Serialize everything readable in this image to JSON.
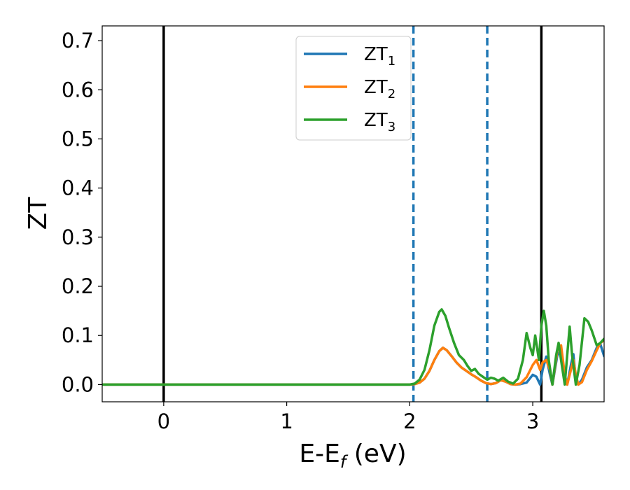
{
  "chart_data": {
    "type": "line",
    "xlabel": "E-E",
    "xlabel_sub": "f",
    "xlabel_unit": " (eV)",
    "ylabel": "ZT",
    "xlim": [
      -0.5,
      3.58
    ],
    "ylim": [
      -0.035,
      0.73
    ],
    "xticks": [
      0,
      1,
      2,
      3
    ],
    "xtick_labels": [
      "0",
      "1",
      "2",
      "3"
    ],
    "yticks": [
      0.0,
      0.1,
      0.2,
      0.3,
      0.4,
      0.5,
      0.6,
      0.7
    ],
    "ytick_labels": [
      "0.0",
      "0.1",
      "0.2",
      "0.3",
      "0.4",
      "0.5",
      "0.6",
      "0.7"
    ],
    "grid": false,
    "legend_position": "top-center",
    "vlines": [
      {
        "x": 0.0,
        "color": "#000000",
        "style": "solid"
      },
      {
        "x": 3.07,
        "color": "#000000",
        "style": "solid"
      },
      {
        "x": 2.03,
        "color": "#1f77b4",
        "style": "dashed"
      },
      {
        "x": 2.63,
        "color": "#1f77b4",
        "style": "dashed"
      }
    ],
    "series": [
      {
        "name": "ZT",
        "name_sub": "1",
        "color": "#1f77b4",
        "points": [
          [
            -0.5,
            0
          ],
          [
            2.0,
            0
          ],
          [
            2.04,
            0.001
          ],
          [
            2.08,
            0.004
          ],
          [
            2.12,
            0.012
          ],
          [
            2.16,
            0.028
          ],
          [
            2.2,
            0.05
          ],
          [
            2.24,
            0.068
          ],
          [
            2.27,
            0.075
          ],
          [
            2.3,
            0.07
          ],
          [
            2.34,
            0.058
          ],
          [
            2.38,
            0.045
          ],
          [
            2.42,
            0.035
          ],
          [
            2.46,
            0.028
          ],
          [
            2.5,
            0.021
          ],
          [
            2.54,
            0.015
          ],
          [
            2.58,
            0.008
          ],
          [
            2.62,
            0.003
          ],
          [
            2.66,
            0.001
          ],
          [
            2.7,
            0.003
          ],
          [
            2.74,
            0.009
          ],
          [
            2.78,
            0.006
          ],
          [
            2.82,
            0.001
          ],
          [
            2.86,
            0.0
          ],
          [
            2.9,
            0.001
          ],
          [
            2.95,
            0.004
          ],
          [
            3.0,
            0.02
          ],
          [
            3.03,
            0.016
          ],
          [
            3.06,
            0.0
          ],
          [
            3.08,
            0.03
          ],
          [
            3.11,
            0.057
          ],
          [
            3.14,
            0.02
          ],
          [
            3.16,
            0.0
          ],
          [
            3.2,
            0.06
          ],
          [
            3.23,
            0.07
          ],
          [
            3.26,
            0.01
          ],
          [
            3.28,
            0.0
          ],
          [
            3.31,
            0.04
          ],
          [
            3.33,
            0.062
          ],
          [
            3.35,
            0.01
          ],
          [
            3.37,
            0.0
          ],
          [
            3.4,
            0.01
          ],
          [
            3.44,
            0.035
          ],
          [
            3.48,
            0.05
          ],
          [
            3.52,
            0.075
          ],
          [
            3.55,
            0.082
          ],
          [
            3.58,
            0.058
          ]
        ]
      },
      {
        "name": "ZT",
        "name_sub": "2",
        "color": "#ff7f0e",
        "points": [
          [
            -0.5,
            0
          ],
          [
            2.0,
            0
          ],
          [
            2.04,
            0.001
          ],
          [
            2.08,
            0.004
          ],
          [
            2.12,
            0.012
          ],
          [
            2.16,
            0.028
          ],
          [
            2.2,
            0.05
          ],
          [
            2.24,
            0.068
          ],
          [
            2.27,
            0.075
          ],
          [
            2.3,
            0.07
          ],
          [
            2.34,
            0.058
          ],
          [
            2.38,
            0.045
          ],
          [
            2.42,
            0.035
          ],
          [
            2.46,
            0.028
          ],
          [
            2.5,
            0.021
          ],
          [
            2.54,
            0.015
          ],
          [
            2.58,
            0.008
          ],
          [
            2.62,
            0.003
          ],
          [
            2.66,
            0.001
          ],
          [
            2.7,
            0.003
          ],
          [
            2.74,
            0.009
          ],
          [
            2.78,
            0.006
          ],
          [
            2.82,
            0.001
          ],
          [
            2.86,
            0.0
          ],
          [
            2.9,
            0.002
          ],
          [
            2.95,
            0.015
          ],
          [
            3.0,
            0.04
          ],
          [
            3.03,
            0.05
          ],
          [
            3.06,
            0.03
          ],
          [
            3.08,
            0.045
          ],
          [
            3.11,
            0.05
          ],
          [
            3.14,
            0.03
          ],
          [
            3.16,
            0.0
          ],
          [
            3.2,
            0.07
          ],
          [
            3.23,
            0.08
          ],
          [
            3.26,
            0.02
          ],
          [
            3.28,
            0.0
          ],
          [
            3.31,
            0.03
          ],
          [
            3.33,
            0.05
          ],
          [
            3.35,
            0.02
          ],
          [
            3.37,
            0.0
          ],
          [
            3.4,
            0.005
          ],
          [
            3.44,
            0.03
          ],
          [
            3.48,
            0.048
          ],
          [
            3.52,
            0.07
          ],
          [
            3.55,
            0.085
          ],
          [
            3.58,
            0.09
          ]
        ]
      },
      {
        "name": "ZT",
        "name_sub": "3",
        "color": "#2ca02c",
        "points": [
          [
            -0.5,
            0
          ],
          [
            2.0,
            0
          ],
          [
            2.04,
            0.002
          ],
          [
            2.08,
            0.01
          ],
          [
            2.12,
            0.03
          ],
          [
            2.16,
            0.07
          ],
          [
            2.2,
            0.12
          ],
          [
            2.24,
            0.148
          ],
          [
            2.26,
            0.153
          ],
          [
            2.29,
            0.14
          ],
          [
            2.32,
            0.115
          ],
          [
            2.36,
            0.085
          ],
          [
            2.4,
            0.06
          ],
          [
            2.44,
            0.05
          ],
          [
            2.47,
            0.038
          ],
          [
            2.5,
            0.028
          ],
          [
            2.53,
            0.032
          ],
          [
            2.56,
            0.022
          ],
          [
            2.6,
            0.015
          ],
          [
            2.63,
            0.01
          ],
          [
            2.66,
            0.014
          ],
          [
            2.69,
            0.012
          ],
          [
            2.72,
            0.008
          ],
          [
            2.76,
            0.014
          ],
          [
            2.8,
            0.006
          ],
          [
            2.84,
            0.002
          ],
          [
            2.88,
            0.012
          ],
          [
            2.92,
            0.05
          ],
          [
            2.95,
            0.105
          ],
          [
            2.98,
            0.075
          ],
          [
            3.0,
            0.06
          ],
          [
            3.02,
            0.1
          ],
          [
            3.05,
            0.05
          ],
          [
            3.07,
            0.12
          ],
          [
            3.09,
            0.15
          ],
          [
            3.11,
            0.12
          ],
          [
            3.13,
            0.05
          ],
          [
            3.16,
            0.0
          ],
          [
            3.19,
            0.06
          ],
          [
            3.21,
            0.085
          ],
          [
            3.23,
            0.05
          ],
          [
            3.26,
            0.0
          ],
          [
            3.28,
            0.06
          ],
          [
            3.3,
            0.118
          ],
          [
            3.32,
            0.06
          ],
          [
            3.35,
            0.0
          ],
          [
            3.38,
            0.04
          ],
          [
            3.42,
            0.135
          ],
          [
            3.45,
            0.128
          ],
          [
            3.48,
            0.11
          ],
          [
            3.52,
            0.08
          ],
          [
            3.55,
            0.085
          ],
          [
            3.58,
            0.093
          ]
        ]
      }
    ]
  }
}
